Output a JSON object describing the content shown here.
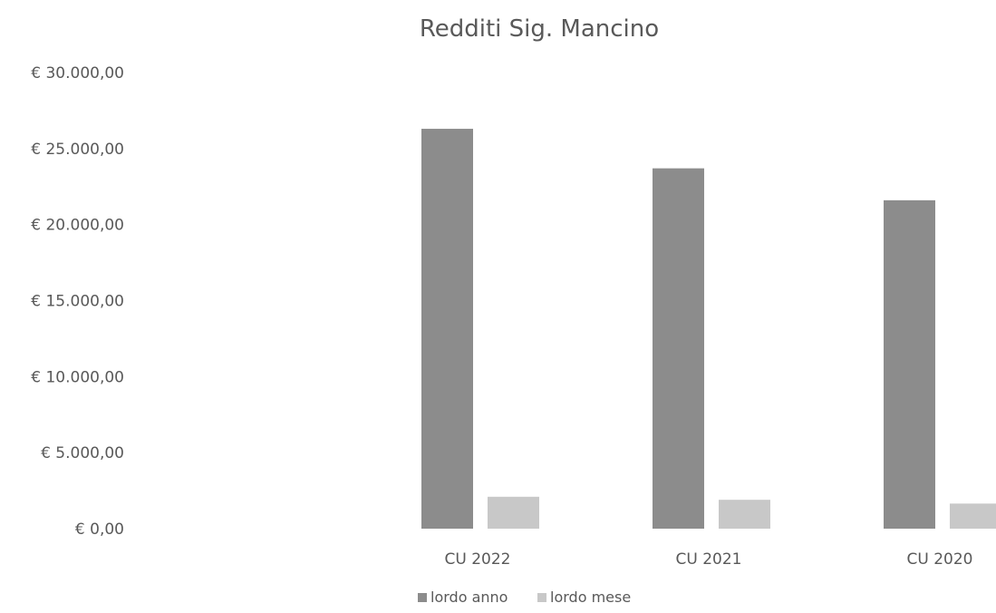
{
  "chart_data": {
    "type": "bar",
    "title": "Redditi Sig. Mancino",
    "xlabel": "",
    "ylabel": "",
    "categories": [
      "CU 2022",
      "CU 2021",
      "CU 2020"
    ],
    "series": [
      {
        "name": "lordo anno",
        "values": [
          26300,
          23700,
          21600
        ],
        "color": "#8c8c8c"
      },
      {
        "name": "lordo mese",
        "values": [
          2100,
          1900,
          1650
        ],
        "color": "#c8c8c8"
      }
    ],
    "ylim": [
      0,
      30000
    ],
    "yticks": [
      0,
      5000,
      10000,
      15000,
      20000,
      25000,
      30000
    ],
    "ytick_labels": [
      "€ 0,00",
      "€ 5.000,00",
      "€ 10.000,00",
      "€ 15.000,00",
      "€ 20.000,00",
      "€ 25.000,00",
      "€ 30.000,00"
    ],
    "grid": false,
    "legend_position": "bottom"
  }
}
